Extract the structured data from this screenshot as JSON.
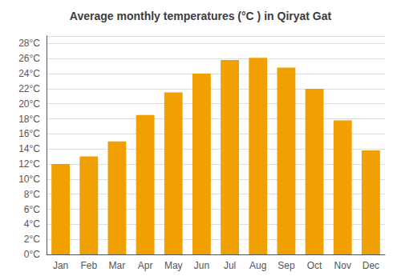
{
  "chart_data": {
    "type": "bar",
    "title": "Average monthly temperatures (°C ) in Qiryat Gat",
    "categories": [
      "Jan",
      "Feb",
      "Mar",
      "Apr",
      "May",
      "Jun",
      "Jul",
      "Aug",
      "Sep",
      "Oct",
      "Nov",
      "Dec"
    ],
    "values": [
      12.0,
      13.0,
      15.0,
      18.5,
      21.5,
      24.0,
      25.8,
      26.1,
      24.8,
      22.0,
      17.8,
      13.8
    ],
    "color": "#F0A000",
    "ylim": [
      0,
      29
    ],
    "yticks": [
      {
        "value": 0,
        "label": "0°C"
      },
      {
        "value": 2,
        "label": "2°C"
      },
      {
        "value": 4,
        "label": "4°C"
      },
      {
        "value": 6,
        "label": "6°C"
      },
      {
        "value": 8,
        "label": "8°C"
      },
      {
        "value": 10,
        "label": "10°C"
      },
      {
        "value": 12,
        "label": "12°C"
      },
      {
        "value": 14,
        "label": "14°C"
      },
      {
        "value": 16,
        "label": "16°C"
      },
      {
        "value": 18,
        "label": "18°C"
      },
      {
        "value": 20,
        "label": "20°C"
      },
      {
        "value": 22,
        "label": "22°C"
      },
      {
        "value": 24,
        "label": "24°C"
      },
      {
        "value": 26,
        "label": "26°C"
      },
      {
        "value": 28,
        "label": "28°C"
      }
    ],
    "grid": true
  }
}
